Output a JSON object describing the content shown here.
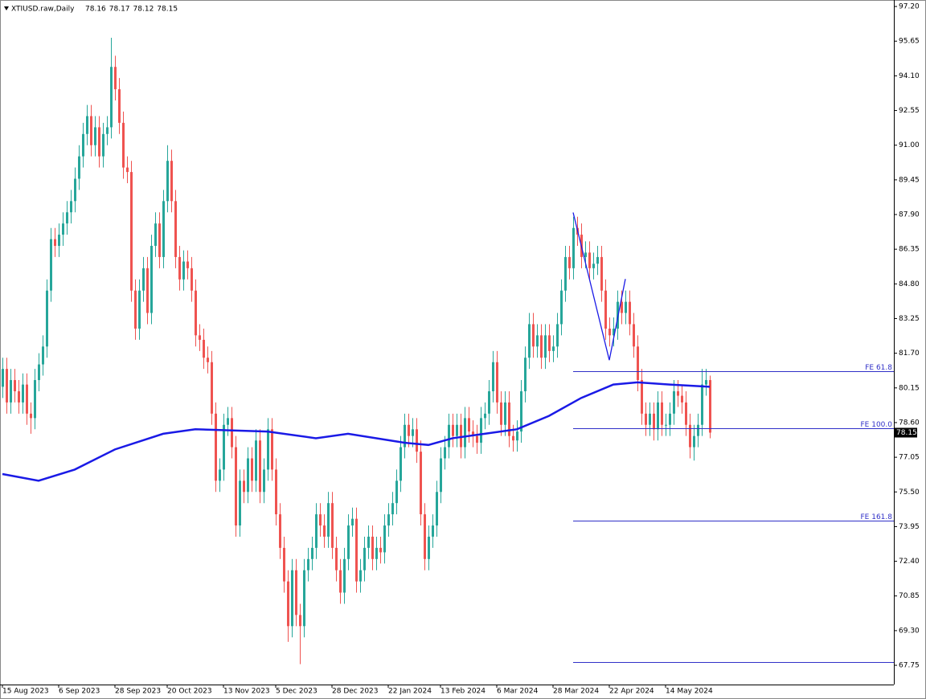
{
  "chart_data": {
    "type": "candlestick",
    "symbol": "XTIUSD.raw,Daily",
    "header_ohlc": [
      78.16,
      78.17,
      78.12,
      78.15
    ],
    "last_price": 78.15,
    "up_color": "#26a69a",
    "down_color": "#ef5350",
    "ylim": [
      66.89,
      97.49
    ],
    "yticks": [
      {
        "value": 97.2,
        "label": "97.20"
      },
      95.65,
      {
        "value": 94.1,
        "label": "94.10"
      },
      92.55,
      {
        "value": 91,
        "label": "91.00"
      },
      89.45,
      {
        "value": 87.9,
        "label": "87.90"
      },
      86.35,
      {
        "value": 84.8,
        "label": "84.80"
      },
      83.25,
      {
        "value": 81.7,
        "label": "81.70"
      },
      80.15,
      {
        "value": 78.6,
        "label": "78.60"
      },
      77.05,
      {
        "value": 75.5,
        "label": "75.50"
      },
      73.95,
      {
        "value": 72.4,
        "label": "72.40"
      },
      70.85,
      {
        "value": 69.3,
        "label": "69.30"
      },
      67.75
    ],
    "categories": [
      "15 Aug 2023",
      null,
      null,
      null,
      null,
      null,
      null,
      null,
      null,
      null,
      null,
      null,
      null,
      null,
      "6 Sep 2023",
      null,
      null,
      null,
      null,
      null,
      null,
      null,
      null,
      null,
      null,
      null,
      null,
      null,
      "28 Sep 2023",
      null,
      null,
      null,
      null,
      null,
      null,
      null,
      null,
      null,
      null,
      null,
      null,
      "20 Oct 2023",
      null,
      null,
      null,
      null,
      null,
      null,
      null,
      null,
      null,
      null,
      null,
      null,
      null,
      "13 Nov 2023",
      null,
      null,
      null,
      null,
      null,
      null,
      null,
      null,
      null,
      null,
      null,
      null,
      "5 Dec 2023",
      null,
      null,
      null,
      null,
      null,
      null,
      null,
      null,
      null,
      null,
      null,
      null,
      null,
      "28 Dec 2023",
      null,
      null,
      null,
      null,
      null,
      null,
      null,
      null,
      null,
      null,
      null,
      null,
      null,
      "22 Jan 2024",
      null,
      null,
      null,
      null,
      null,
      null,
      null,
      null,
      null,
      null,
      null,
      null,
      "13 Feb 2024",
      null,
      null,
      null,
      null,
      null,
      null,
      null,
      null,
      null,
      null,
      null,
      null,
      null,
      "6 Mar 2024",
      null,
      null,
      null,
      null,
      null,
      null,
      null,
      null,
      null,
      null,
      null,
      null,
      null,
      "28 Mar 2024",
      null,
      null,
      null,
      null,
      null,
      null,
      null,
      null,
      null,
      null,
      null,
      null,
      null,
      "22 Apr 2024",
      null,
      null,
      null,
      null,
      null,
      null,
      null,
      null,
      null,
      null,
      null,
      null,
      null,
      "14 May 2024",
      null,
      null,
      null,
      null,
      null,
      null,
      null,
      null,
      null,
      null,
      null
    ],
    "open": [
      80.2,
      81,
      79.5,
      80.5,
      80,
      79.5,
      80.3,
      79,
      78.8,
      80.5,
      81.2,
      82,
      84.5,
      86.8,
      86.5,
      87,
      87.5,
      88,
      88.5,
      89.5,
      90.5,
      91.5,
      92.3,
      91,
      91.8,
      90.5,
      91.5,
      91.8,
      94.5,
      93.5,
      92,
      90,
      89.8,
      84.5,
      82.8,
      84.5,
      85.5,
      83.5,
      86.5,
      87.5,
      86,
      88.5,
      90.3,
      88.5,
      86,
      85,
      85.8,
      85.5,
      84.5,
      82.5,
      82.3,
      81.5,
      81.3,
      79,
      76,
      76.5,
      78.5,
      78.8,
      77.5,
      74,
      76,
      75.5,
      77,
      76,
      77.8,
      75.5,
      76.5,
      78.3,
      76.5,
      74.5,
      73,
      71.5,
      69.5,
      72,
      70,
      69.5,
      72,
      72.5,
      73,
      74.5,
      74,
      73.5,
      75,
      73,
      72,
      71,
      72.5,
      74,
      74.3,
      71.5,
      72,
      73,
      73.5,
      72.5,
      73,
      72.8,
      74,
      74.5,
      75,
      76,
      77.5,
      78.5,
      78,
      78.3,
      77.3,
      74.5,
      72.5,
      73.5,
      74,
      75.5,
      77,
      77.5,
      78.5,
      78,
      78.5,
      77.5,
      78.8,
      78.2,
      78,
      77.7,
      78.8,
      79,
      80,
      81.3,
      79.5,
      78.5,
      79.5,
      78,
      77.8,
      78.2,
      80,
      81.5,
      83,
      82,
      82.5,
      81.5,
      82.5,
      81.8,
      82,
      83,
      84.5,
      86,
      85.5,
      87.3,
      87,
      86,
      86.2,
      85.5,
      85.7,
      86,
      84.5,
      82.8,
      82.5,
      82.8,
      84,
      83.5,
      84,
      83,
      82,
      80.5,
      79,
      78.5,
      79,
      78.3,
      79.5,
      78.5,
      78.5,
      79,
      80,
      79.8,
      79.5,
      78.5,
      77.5,
      78,
      78.5,
      80.3,
      80.5
    ],
    "high": [
      81.5,
      81.5,
      81,
      81,
      80.5,
      80.8,
      80.8,
      79.5,
      81,
      81.7,
      82.5,
      85,
      87.3,
      87.3,
      87.5,
      88,
      88.5,
      89,
      90,
      91,
      92,
      92.8,
      92.8,
      92.3,
      92.3,
      92,
      92.3,
      95.8,
      95,
      94,
      92.5,
      90.5,
      90.3,
      85,
      85,
      86,
      86,
      87,
      88,
      88,
      89,
      91,
      90.8,
      89,
      86.5,
      86.3,
      86.3,
      86,
      85,
      83,
      82.8,
      82,
      81.8,
      79.5,
      77,
      79,
      79.3,
      79.3,
      78,
      76.5,
      76.5,
      77.5,
      77.5,
      78.3,
      78.3,
      77,
      78.8,
      78.8,
      77,
      75,
      73.5,
      72,
      72.5,
      72.5,
      70.5,
      72.5,
      73,
      73.5,
      75,
      75,
      74.5,
      75.5,
      75.5,
      73.5,
      72.5,
      73,
      74.5,
      74.8,
      74.8,
      72.5,
      73.5,
      74,
      74,
      73.5,
      73.5,
      74.5,
      75,
      75.5,
      76.5,
      78,
      79,
      79,
      78.8,
      78.8,
      77.8,
      75,
      74,
      74.5,
      76,
      77.5,
      78,
      79,
      79,
      79,
      79,
      79.3,
      79.3,
      78.7,
      78.5,
      79.3,
      79.5,
      80.5,
      81.8,
      81.8,
      80,
      80,
      80,
      78.5,
      78.7,
      80.5,
      82,
      83.5,
      83.5,
      83,
      83,
      83,
      83,
      82.5,
      83.5,
      85,
      86.5,
      86.5,
      87.8,
      87.8,
      87.5,
      86.7,
      86.7,
      86.2,
      86.5,
      86.5,
      85,
      83.3,
      83.3,
      84.5,
      84.5,
      84.5,
      84.5,
      83.5,
      82.5,
      81,
      79.5,
      79.5,
      79.5,
      80,
      80,
      79,
      79.5,
      80.5,
      80.5,
      80.3,
      80,
      79,
      78.5,
      79,
      81,
      81,
      80.7
    ],
    "low": [
      79.7,
      79,
      79,
      79.5,
      79,
      79,
      78.5,
      78.1,
      78.3,
      80,
      80.7,
      81.5,
      84,
      86,
      86,
      86.5,
      87,
      87.5,
      88,
      89,
      90,
      91,
      90.5,
      90.5,
      90,
      90,
      91,
      91.3,
      93,
      91.5,
      89.5,
      89.3,
      84,
      82.3,
      82.3,
      84,
      83,
      83,
      86,
      85.5,
      85.5,
      88,
      88,
      85.5,
      84.5,
      84.5,
      85,
      84,
      82,
      81.8,
      81,
      80.8,
      78.5,
      75.5,
      75.5,
      76,
      78,
      77,
      73.5,
      73.5,
      75,
      75,
      75.5,
      75.5,
      75,
      75,
      76,
      76,
      74,
      72.5,
      71,
      68.8,
      69,
      69.5,
      67.8,
      69,
      71.5,
      72,
      72.5,
      73.5,
      73,
      73,
      72.5,
      71.5,
      70.5,
      70.5,
      72,
      73.5,
      71,
      71,
      71.5,
      72.5,
      72,
      72,
      72.3,
      72.3,
      73.5,
      74,
      74.5,
      75.5,
      77,
      77.5,
      77.5,
      76.8,
      74,
      72,
      72,
      73,
      73.5,
      75,
      76.5,
      77,
      77.5,
      77.5,
      77,
      77,
      77.7,
      77.5,
      77.2,
      77.2,
      78.3,
      78.5,
      79.5,
      79,
      78,
      78,
      77.5,
      77.3,
      77.3,
      77.7,
      79.5,
      81,
      81.5,
      81.5,
      81,
      81,
      81.3,
      81.3,
      81.5,
      82.5,
      84,
      85,
      85,
      86.5,
      85.5,
      85.5,
      85,
      85,
      85.2,
      84,
      82.3,
      82,
      82,
      82.3,
      83,
      83,
      82.5,
      81.5,
      80,
      78.5,
      78,
      78,
      77.8,
      77.8,
      78,
      78,
      78,
      78.5,
      79.3,
      79,
      78,
      77,
      76.9,
      77.5,
      78,
      79.8,
      77.9
    ],
    "close": [
      81,
      79.5,
      80.5,
      80,
      79.5,
      80.3,
      79,
      78.8,
      80.5,
      81.2,
      82,
      84.5,
      86.8,
      86.5,
      87,
      87.5,
      88,
      88.5,
      89.5,
      90.5,
      91.5,
      92.3,
      91,
      91.8,
      90.5,
      91.5,
      91.8,
      94.5,
      93.5,
      92,
      90,
      89.8,
      84.5,
      82.8,
      84.5,
      85.5,
      83.5,
      86.5,
      87.5,
      86,
      88.5,
      90.3,
      88.5,
      86,
      85,
      85.8,
      85.5,
      84.5,
      82.5,
      82.3,
      81.5,
      81.3,
      79,
      76,
      76.5,
      78.5,
      78.8,
      77.5,
      74,
      76,
      75.5,
      77,
      76,
      77.8,
      75.5,
      76.5,
      78.3,
      76.5,
      74.5,
      73,
      71.5,
      69.5,
      72,
      70,
      69.5,
      72,
      72.5,
      73,
      74.5,
      74,
      73.5,
      75,
      73,
      72,
      71,
      72.5,
      74,
      74.3,
      71.5,
      72,
      73,
      73.5,
      72.5,
      73,
      72.8,
      74,
      74.5,
      75,
      76,
      77.5,
      78.5,
      78,
      78.3,
      77.3,
      74.5,
      72.5,
      73.5,
      74,
      75.5,
      77,
      77.5,
      78.5,
      78,
      78.5,
      77.5,
      78.8,
      78.2,
      78,
      77.7,
      78.8,
      79,
      80,
      81.3,
      79.5,
      78.5,
      79.5,
      78,
      77.8,
      78.2,
      80,
      81.5,
      83,
      82,
      82.5,
      81.5,
      82.5,
      81.8,
      82,
      83,
      84.5,
      86,
      85.5,
      87.3,
      87,
      86,
      86.2,
      85.5,
      85.7,
      86,
      84.5,
      82.8,
      82.5,
      82.8,
      84,
      83.5,
      84,
      83,
      82,
      80.5,
      79,
      78.5,
      79,
      78.3,
      79.5,
      78.5,
      78.5,
      79,
      80,
      79.8,
      79.5,
      78.5,
      77.5,
      78,
      78.5,
      80.3,
      80.5,
      78.15
    ],
    "moving_average": {
      "color": "#1a1ae6",
      "x": [
        0,
        9,
        18,
        28,
        40,
        48,
        66,
        78,
        86,
        100,
        106,
        112,
        120,
        128,
        136,
        144,
        152,
        158,
        166,
        176
      ],
      "values": [
        76.3,
        76.0,
        76.5,
        77.4,
        78.1,
        78.3,
        78.2,
        77.9,
        78.1,
        77.7,
        77.6,
        77.9,
        78.1,
        78.3,
        78.9,
        79.7,
        80.3,
        80.4,
        80.3,
        80.2
      ]
    },
    "zigzag": {
      "color": "#1a1ae6",
      "x": [
        142,
        151,
        155
      ],
      "values": [
        87.99,
        81.39,
        85.02
      ]
    },
    "fib_levels": {
      "color": "#3030c8",
      "start_x": 142,
      "levels": [
        {
          "value": 80.89,
          "label": "FE 61.8"
        },
        {
          "value": 78.34,
          "label": "FE 100.0"
        },
        {
          "value": 74.21,
          "label": "FE 161.8"
        },
        {
          "value": 67.89
        }
      ]
    }
  }
}
